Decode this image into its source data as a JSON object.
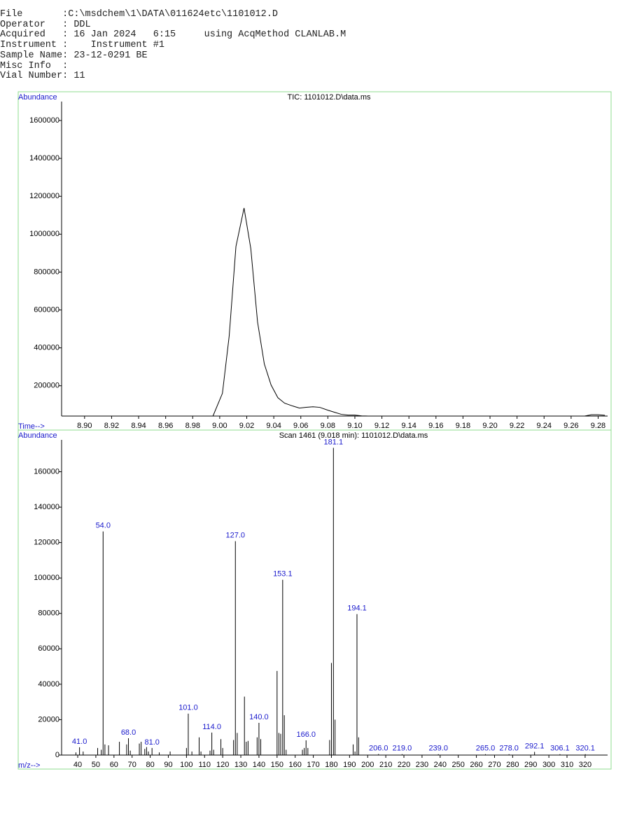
{
  "header": {
    "lines": [
      "File       :C:\\msdchem\\1\\DATA\\011624etc\\1101012.D",
      "Operator   : DDL",
      "Acquired   : 16 Jan 2024   6:15     using AcqMethod CLANLAB.M",
      "Instrument :    Instrument #1",
      "Sample Name: 23-12-0291 BE",
      "Misc Info  :",
      "Vial Number: 11"
    ]
  },
  "chart_data": [
    {
      "type": "line",
      "title": "TIC: 1101012.D\\data.ms",
      "ylabel": "Abundance",
      "xlabel": "Time-->",
      "color": "#000000",
      "x": [
        8.995,
        9.002,
        9.007,
        9.012,
        9.018,
        9.023,
        9.028,
        9.033,
        9.038,
        9.043,
        9.048,
        9.054,
        9.059,
        9.064,
        9.069,
        9.074,
        9.08,
        9.085,
        9.09,
        9.095,
        9.1,
        9.105,
        9.11,
        9.27,
        9.275,
        9.28,
        9.285
      ],
      "values": [
        40000,
        160000,
        462000,
        935000,
        1138000,
        924000,
        536000,
        315000,
        204000,
        137000,
        108000,
        93000,
        82000,
        86000,
        89000,
        86000,
        71000,
        60000,
        49000,
        45000,
        45000,
        41000,
        40000,
        40000,
        47000,
        47000,
        44000
      ],
      "xlim": [
        8.883,
        9.287
      ],
      "ylim": [
        40000,
        1700000
      ],
      "xticks": [
        {
          "value": 8.9,
          "label": "8.90"
        },
        8.92,
        8.94,
        8.96,
        8.98,
        {
          "value": 9.0,
          "label": "9.00"
        },
        9.02,
        9.04,
        9.06,
        9.08,
        {
          "value": 9.1,
          "label": "9.10"
        },
        9.12,
        9.14,
        9.16,
        9.18,
        {
          "value": 9.2,
          "label": "9.20"
        },
        9.22,
        9.24,
        9.26,
        9.28
      ],
      "yticks": [
        200000,
        400000,
        600000,
        800000,
        1000000,
        1200000,
        1400000,
        1600000
      ]
    },
    {
      "type": "stem",
      "title": "Scan 1461 (9.018 min): 1101012.D\\data.ms",
      "ylabel": "Abundance",
      "xlabel": "m/z-->",
      "color": "#000000",
      "label_color": "#1a1acc",
      "x": [
        39,
        41.0,
        43,
        51,
        53,
        54.0,
        55,
        57,
        63,
        67,
        68.0,
        69,
        74,
        75,
        77,
        78,
        79,
        81.0,
        85,
        91,
        100,
        101.0,
        103,
        107,
        108,
        113,
        114.0,
        115,
        119,
        120,
        126,
        127.0,
        128,
        132,
        133,
        134,
        139,
        140.0,
        141,
        150,
        151,
        152,
        153.1,
        154,
        155,
        164,
        165,
        166.0,
        167,
        179,
        180,
        181.1,
        182,
        192,
        193,
        194.1,
        195,
        206.0,
        219.0,
        239.0,
        265.0,
        278.0,
        292.1,
        306.1,
        320.1
      ],
      "values": [
        1500,
        4400,
        2000,
        4000,
        3000,
        126300,
        6000,
        5500,
        7500,
        6000,
        9500,
        2500,
        6500,
        7500,
        3500,
        4500,
        2000,
        4000,
        1500,
        2000,
        4000,
        23400,
        2000,
        10000,
        2000,
        2500,
        12700,
        3000,
        9000,
        4000,
        8500,
        120800,
        12500,
        33000,
        7500,
        8000,
        10000,
        18200,
        9000,
        47500,
        12500,
        12000,
        99000,
        22500,
        3000,
        3000,
        4000,
        8300,
        4000,
        8500,
        52000,
        173500,
        20000,
        6000,
        2000,
        79600,
        10000,
        600,
        500,
        500,
        500,
        500,
        1800,
        500,
        500
      ],
      "x_labels": [
        null,
        "41.0",
        null,
        null,
        null,
        "54.0",
        null,
        null,
        null,
        null,
        "68.0",
        null,
        null,
        null,
        null,
        null,
        null,
        "81.0",
        null,
        null,
        null,
        "101.0",
        null,
        null,
        null,
        null,
        "114.0",
        null,
        null,
        null,
        null,
        "127.0",
        null,
        null,
        null,
        null,
        null,
        "140.0",
        null,
        null,
        null,
        null,
        "153.1",
        null,
        null,
        null,
        null,
        "166.0",
        null,
        null,
        null,
        "181.1",
        null,
        null,
        null,
        "194.1",
        null,
        "206.0",
        "219.0",
        "239.0",
        "265.0",
        "278.0",
        "292.1",
        "306.1",
        "320.1"
      ],
      "xlim": [
        31.1,
        332.4
      ],
      "ylim": [
        0,
        178000
      ],
      "xticks": [
        40,
        50,
        60,
        70,
        80,
        90,
        100,
        110,
        120,
        130,
        140,
        150,
        160,
        170,
        180,
        190,
        200,
        210,
        220,
        230,
        240,
        250,
        260,
        270,
        280,
        290,
        300,
        310,
        320
      ],
      "yticks": [
        0,
        20000,
        40000,
        60000,
        80000,
        100000,
        120000,
        140000,
        160000
      ]
    }
  ]
}
